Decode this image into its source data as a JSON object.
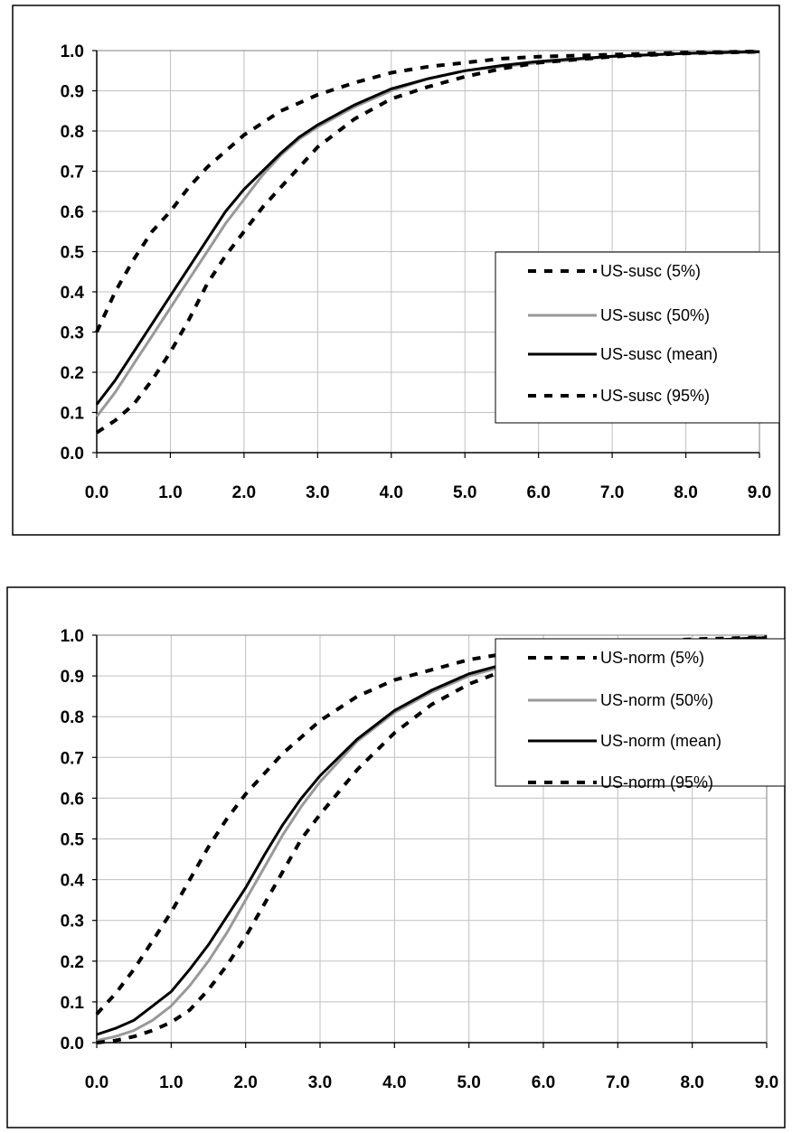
{
  "chart_data": [
    {
      "type": "line",
      "title": "",
      "xlabel": "",
      "ylabel": "",
      "xlim": [
        0,
        9
      ],
      "ylim": [
        0,
        1
      ],
      "grid": true,
      "legend_position": "right",
      "x_ticks": [
        "0.0",
        "1.0",
        "2.0",
        "3.0",
        "4.0",
        "5.0",
        "6.0",
        "7.0",
        "8.0",
        "9.0"
      ],
      "y_ticks": [
        "0.0",
        "0.1",
        "0.2",
        "0.3",
        "0.4",
        "0.5",
        "0.6",
        "0.7",
        "0.8",
        "0.9",
        "1.0"
      ],
      "series": [
        {
          "name": "US-susc (5%)",
          "style": "dashed",
          "color": "#000000",
          "x": [
            0,
            0.25,
            0.5,
            0.75,
            1,
            1.25,
            1.5,
            1.75,
            2,
            2.25,
            2.5,
            2.75,
            3,
            3.5,
            4,
            4.5,
            5,
            5.5,
            6,
            7,
            8,
            9
          ],
          "y": [
            0.3,
            0.4,
            0.48,
            0.55,
            0.6,
            0.66,
            0.71,
            0.75,
            0.79,
            0.82,
            0.85,
            0.87,
            0.89,
            0.92,
            0.945,
            0.96,
            0.97,
            0.98,
            0.985,
            0.99,
            0.995,
            0.998
          ]
        },
        {
          "name": "US-susc (50%)",
          "style": "solid",
          "color": "#999999",
          "x": [
            0,
            0.25,
            0.5,
            0.75,
            1,
            1.25,
            1.5,
            1.75,
            2,
            2.25,
            2.5,
            2.75,
            3,
            3.5,
            4,
            4.5,
            5,
            5.5,
            6,
            7,
            8,
            9
          ],
          "y": [
            0.09,
            0.15,
            0.22,
            0.29,
            0.36,
            0.43,
            0.5,
            0.57,
            0.63,
            0.69,
            0.74,
            0.78,
            0.81,
            0.86,
            0.9,
            0.93,
            0.95,
            0.96,
            0.97,
            0.985,
            0.993,
            0.997
          ]
        },
        {
          "name": "US-susc (mean)",
          "style": "solid",
          "color": "#000000",
          "x": [
            0,
            0.25,
            0.5,
            0.75,
            1,
            1.25,
            1.5,
            1.75,
            2,
            2.25,
            2.5,
            2.75,
            3,
            3.5,
            4,
            4.5,
            5,
            5.5,
            6,
            7,
            8,
            9
          ],
          "y": [
            0.12,
            0.18,
            0.25,
            0.32,
            0.39,
            0.46,
            0.53,
            0.6,
            0.655,
            0.7,
            0.745,
            0.785,
            0.815,
            0.865,
            0.905,
            0.93,
            0.95,
            0.963,
            0.973,
            0.986,
            0.993,
            0.997
          ]
        },
        {
          "name": "US-susc (95%)",
          "style": "dashed",
          "color": "#000000",
          "x": [
            0,
            0.25,
            0.5,
            0.75,
            1,
            1.25,
            1.5,
            1.75,
            2,
            2.25,
            2.5,
            2.75,
            3,
            3.5,
            4,
            4.5,
            5,
            5.5,
            6,
            7,
            8,
            9
          ],
          "y": [
            0.05,
            0.08,
            0.12,
            0.18,
            0.25,
            0.33,
            0.42,
            0.49,
            0.55,
            0.61,
            0.66,
            0.71,
            0.76,
            0.83,
            0.88,
            0.91,
            0.935,
            0.955,
            0.97,
            0.985,
            0.993,
            0.997
          ]
        }
      ]
    },
    {
      "type": "line",
      "title": "",
      "xlabel": "",
      "ylabel": "",
      "xlim": [
        0,
        9
      ],
      "ylim": [
        0,
        1
      ],
      "grid": true,
      "legend_position": "right",
      "x_ticks": [
        "0.0",
        "1.0",
        "2.0",
        "3.0",
        "4.0",
        "5.0",
        "6.0",
        "7.0",
        "8.0",
        "9.0"
      ],
      "y_ticks": [
        "0.0",
        "0.1",
        "0.2",
        "0.3",
        "0.4",
        "0.5",
        "0.6",
        "0.7",
        "0.8",
        "0.9",
        "1.0"
      ],
      "series": [
        {
          "name": "US-norm (5%)",
          "style": "dashed",
          "color": "#000000",
          "x": [
            0,
            0.25,
            0.5,
            0.75,
            1,
            1.25,
            1.5,
            1.75,
            2,
            2.25,
            2.5,
            2.75,
            3,
            3.5,
            4,
            4.5,
            5,
            5.5,
            6,
            7,
            8,
            9
          ],
          "y": [
            0.07,
            0.12,
            0.18,
            0.25,
            0.32,
            0.4,
            0.48,
            0.55,
            0.61,
            0.66,
            0.71,
            0.75,
            0.79,
            0.85,
            0.89,
            0.915,
            0.94,
            0.955,
            0.965,
            0.98,
            0.99,
            0.995
          ]
        },
        {
          "name": "US-norm (50%)",
          "style": "solid",
          "color": "#999999",
          "x": [
            0,
            0.25,
            0.5,
            0.75,
            1,
            1.25,
            1.5,
            1.75,
            2,
            2.25,
            2.5,
            2.75,
            3,
            3.5,
            4,
            4.5,
            5,
            5.5,
            6,
            7,
            8,
            9
          ],
          "y": [
            0.005,
            0.015,
            0.03,
            0.055,
            0.09,
            0.14,
            0.2,
            0.27,
            0.35,
            0.43,
            0.51,
            0.58,
            0.64,
            0.74,
            0.81,
            0.86,
            0.9,
            0.925,
            0.945,
            0.97,
            0.985,
            0.993
          ]
        },
        {
          "name": "US-norm (mean)",
          "style": "solid",
          "color": "#000000",
          "x": [
            0,
            0.25,
            0.5,
            0.75,
            1,
            1.25,
            1.5,
            1.75,
            2,
            2.25,
            2.5,
            2.75,
            3,
            3.5,
            4,
            4.5,
            5,
            5.5,
            6,
            7,
            8,
            9
          ],
          "y": [
            0.02,
            0.035,
            0.055,
            0.09,
            0.125,
            0.18,
            0.24,
            0.31,
            0.38,
            0.46,
            0.535,
            0.6,
            0.655,
            0.745,
            0.815,
            0.865,
            0.905,
            0.93,
            0.95,
            0.972,
            0.986,
            0.994
          ]
        },
        {
          "name": "US-norm (95%)",
          "style": "dashed",
          "color": "#000000",
          "x": [
            0,
            0.25,
            0.5,
            0.75,
            1,
            1.25,
            1.5,
            1.75,
            2,
            2.25,
            2.5,
            2.75,
            3,
            3.5,
            4,
            4.5,
            5,
            5.5,
            6,
            7,
            8,
            9
          ],
          "y": [
            0.0,
            0.005,
            0.015,
            0.03,
            0.05,
            0.08,
            0.13,
            0.19,
            0.26,
            0.34,
            0.42,
            0.5,
            0.56,
            0.67,
            0.76,
            0.83,
            0.88,
            0.915,
            0.94,
            0.97,
            0.985,
            0.993
          ]
        }
      ]
    }
  ]
}
